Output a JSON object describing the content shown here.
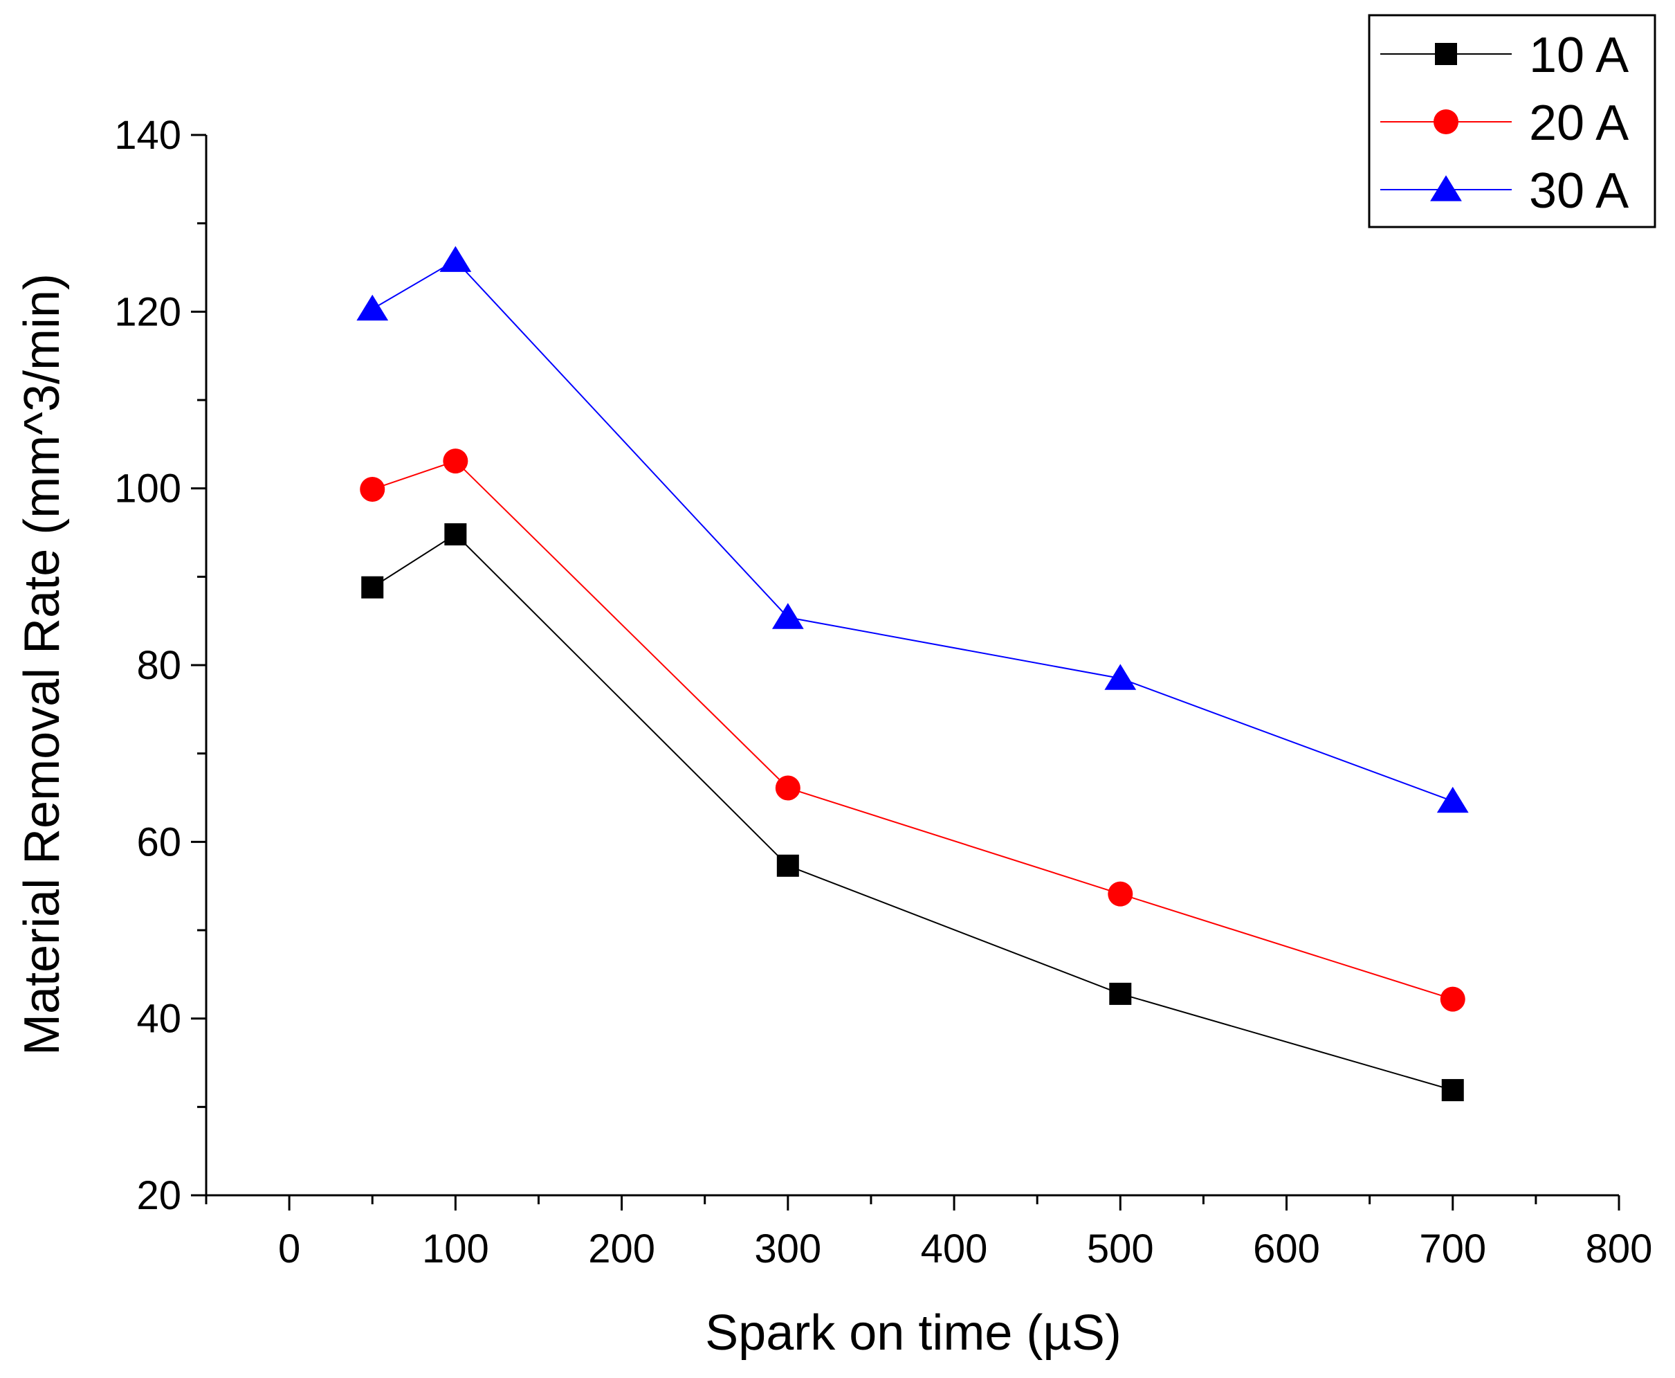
{
  "chart_data": {
    "type": "line",
    "title": "",
    "xlabel": "Spark on time (µS)",
    "ylabel": "Material Removal Rate (mm^3/min)",
    "xlim": [
      -50,
      800
    ],
    "ylim": [
      20,
      140
    ],
    "xticks": [
      0,
      100,
      200,
      300,
      400,
      500,
      600,
      700,
      800
    ],
    "yticks": [
      20,
      40,
      60,
      80,
      100,
      120,
      140
    ],
    "xtick_labels": [
      "0",
      "100",
      "200",
      "300",
      "400",
      "500",
      "600",
      "700",
      "800"
    ],
    "ytick_labels": [
      "20",
      "40",
      "60",
      "80",
      "100",
      "120",
      "140"
    ],
    "grid": false,
    "legend_position": "top-right",
    "x": [
      50,
      100,
      300,
      500,
      700
    ],
    "series": [
      {
        "name": "10 A",
        "marker": "square",
        "color": "#000000",
        "values": [
          88.8,
          94.8,
          57.3,
          42.8,
          31.9
        ]
      },
      {
        "name": "20 A",
        "marker": "circle",
        "color": "#ff0000",
        "values": [
          99.9,
          103.1,
          66.1,
          54.1,
          42.2
        ]
      },
      {
        "name": "30 A",
        "marker": "triangle",
        "color": "#0000ff",
        "values": [
          120.3,
          125.8,
          85.4,
          78.5,
          64.6
        ]
      }
    ]
  }
}
